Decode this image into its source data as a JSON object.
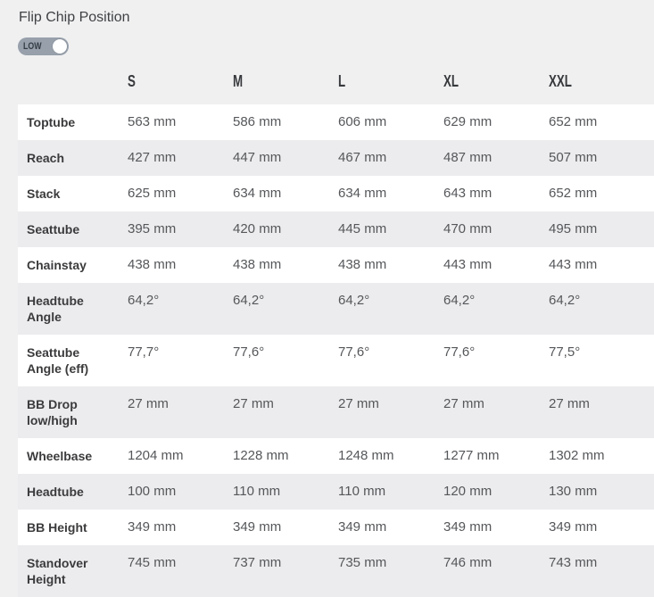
{
  "section": {
    "title": "Flip Chip Position"
  },
  "toggle": {
    "state": "LOW"
  },
  "table": {
    "size_columns": [
      "S",
      "M",
      "L",
      "XL",
      "XXL"
    ],
    "rows": [
      {
        "label": "Toptube",
        "values": [
          "563 mm",
          "586 mm",
          "606 mm",
          "629 mm",
          "652 mm"
        ]
      },
      {
        "label": "Reach",
        "values": [
          "427 mm",
          "447 mm",
          "467 mm",
          "487 mm",
          "507 mm"
        ]
      },
      {
        "label": "Stack",
        "values": [
          "625 mm",
          "634 mm",
          "634 mm",
          "643 mm",
          "652 mm"
        ]
      },
      {
        "label": "Seattube",
        "values": [
          "395 mm",
          "420 mm",
          "445 mm",
          "470 mm",
          "495 mm"
        ]
      },
      {
        "label": "Chainstay",
        "values": [
          "438 mm",
          "438 mm",
          "438 mm",
          "443 mm",
          "443 mm"
        ]
      },
      {
        "label": "Headtube Angle",
        "values": [
          "64,2°",
          "64,2°",
          "64,2°",
          "64,2°",
          "64,2°"
        ]
      },
      {
        "label": "Seattube Angle (eff)",
        "values": [
          "77,7°",
          "77,6°",
          "77,6°",
          "77,6°",
          "77,5°"
        ]
      },
      {
        "label": "BB Drop low/high",
        "values": [
          "27 mm",
          "27 mm",
          "27 mm",
          "27 mm",
          "27 mm"
        ]
      },
      {
        "label": "Wheelbase",
        "values": [
          "1204 mm",
          "1228 mm",
          "1248 mm",
          "1277 mm",
          "1302 mm"
        ]
      },
      {
        "label": "Headtube",
        "values": [
          "100 mm",
          "110 mm",
          "110 mm",
          "120 mm",
          "130 mm"
        ]
      },
      {
        "label": "BB Height",
        "values": [
          "349 mm",
          "349 mm",
          "349 mm",
          "349 mm",
          "349 mm"
        ]
      },
      {
        "label": "Standover Height",
        "values": [
          "745 mm",
          "737 mm",
          "735 mm",
          "746 mm",
          "743 mm"
        ]
      }
    ]
  },
  "colors": {
    "page_bg": "#f0f0f1",
    "row_white": "#ffffff",
    "row_gray": "#ececee",
    "toggle_bg": "#97a0ab",
    "toggle_knob": "#ffffff",
    "toggle_text": "#343b44",
    "header_text": "#37393c",
    "label_text": "#3b3b3d",
    "value_text": "#55575a",
    "title_text": "#3f4144"
  }
}
